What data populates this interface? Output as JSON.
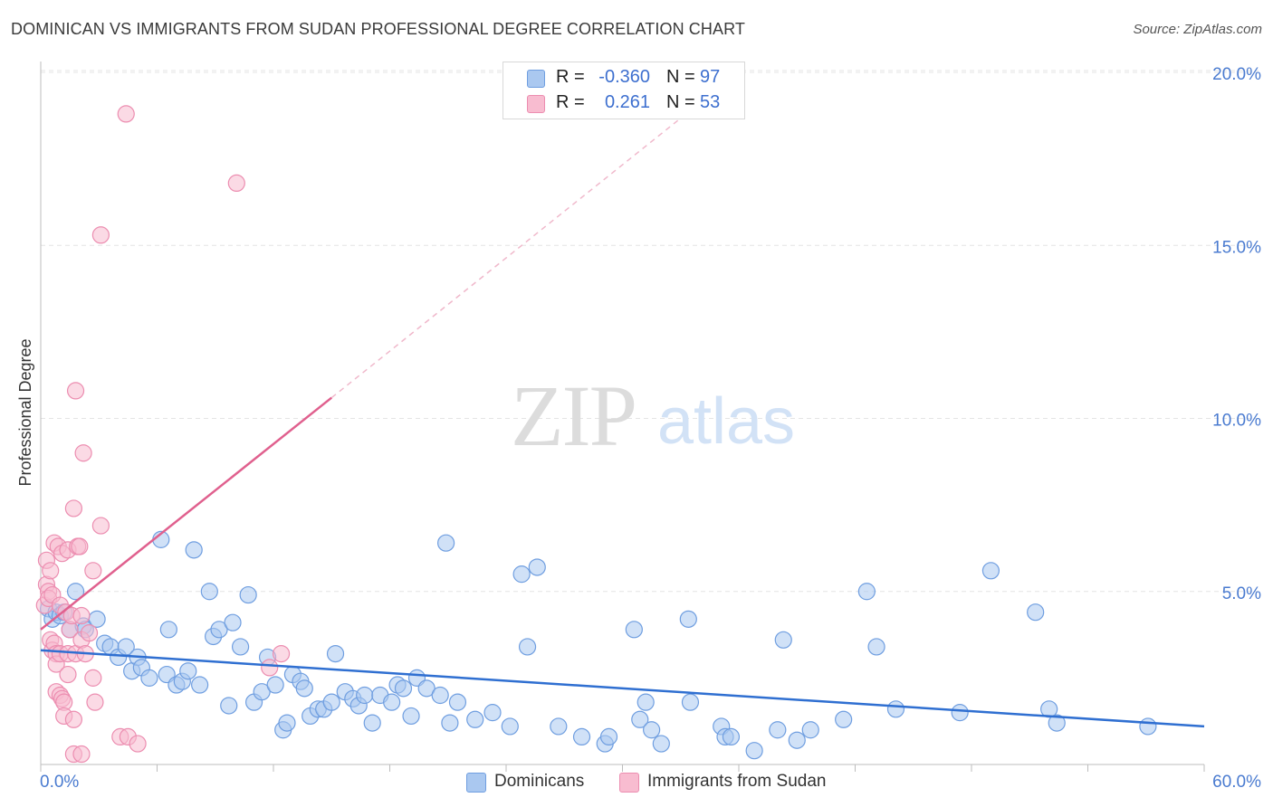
{
  "title": "DOMINICAN VS IMMIGRANTS FROM SUDAN PROFESSIONAL DEGREE CORRELATION CHART",
  "source": "Source: ZipAtlas.com",
  "watermark": {
    "zip": "ZIP",
    "atlas": "atlas"
  },
  "legend": {
    "rows": [
      {
        "r_label": "R =",
        "r_value": "-0.360",
        "n_label": "N =",
        "n_value": "97",
        "color": "#aac8f0",
        "border": "#6f9ee0"
      },
      {
        "r_label": "R =",
        "r_value": "0.261",
        "n_label": "N =",
        "n_value": "53",
        "color": "#f8bcd0",
        "border": "#ec8db0"
      }
    ]
  },
  "bottom_legend": {
    "items": [
      {
        "label": "Dominicans",
        "color": "#aac8f0",
        "border": "#6f9ee0"
      },
      {
        "label": "Immigrants from Sudan",
        "color": "#f8bcd0",
        "border": "#ec8db0"
      }
    ]
  },
  "chart_data": {
    "type": "scatter",
    "title": "DOMINICAN VS IMMIGRANTS FROM SUDAN PROFESSIONAL DEGREE CORRELATION CHART",
    "xlabel": "",
    "ylabel": "Professional Degree",
    "xlim": [
      0,
      60
    ],
    "ylim": [
      0,
      20
    ],
    "x_tick_labels": [
      "0.0%",
      "60.0%"
    ],
    "y_tick_labels": [
      "5.0%",
      "10.0%",
      "15.0%",
      "20.0%"
    ],
    "y_tick_values": [
      5,
      10,
      15,
      20
    ],
    "colors": {
      "blue_fill": "#aac8f0",
      "blue_stroke": "#6f9ee0",
      "blue_line": "#2f6fd1",
      "pink_fill": "#f8bcd0",
      "pink_stroke": "#ec8db0",
      "pink_line": "#e0608e",
      "grid": "#e4e4e4"
    },
    "series": [
      {
        "name": "Dominicans",
        "trend": {
          "x0": 0,
          "y0": 3.3,
          "x1": 60,
          "y1": 1.1
        },
        "points": [
          [
            0.4,
            4.5
          ],
          [
            0.6,
            4.2
          ],
          [
            0.8,
            4.4
          ],
          [
            1.0,
            4.3
          ],
          [
            1.2,
            4.4
          ],
          [
            1.5,
            3.9
          ],
          [
            1.8,
            5.0
          ],
          [
            2.2,
            4.0
          ],
          [
            2.3,
            3.9
          ],
          [
            2.9,
            4.2
          ],
          [
            3.3,
            3.5
          ],
          [
            3.6,
            3.4
          ],
          [
            4.0,
            3.1
          ],
          [
            4.4,
            3.4
          ],
          [
            4.7,
            2.7
          ],
          [
            5.0,
            3.1
          ],
          [
            5.2,
            2.8
          ],
          [
            5.6,
            2.5
          ],
          [
            6.2,
            6.5
          ],
          [
            6.5,
            2.6
          ],
          [
            6.6,
            3.9
          ],
          [
            7.0,
            2.3
          ],
          [
            7.3,
            2.4
          ],
          [
            7.6,
            2.7
          ],
          [
            7.9,
            6.2
          ],
          [
            8.2,
            2.3
          ],
          [
            8.7,
            5.0
          ],
          [
            8.9,
            3.7
          ],
          [
            9.2,
            3.9
          ],
          [
            9.7,
            1.7
          ],
          [
            9.9,
            4.1
          ],
          [
            10.3,
            3.4
          ],
          [
            10.7,
            4.9
          ],
          [
            11.0,
            1.8
          ],
          [
            11.4,
            2.1
          ],
          [
            11.7,
            3.1
          ],
          [
            12.1,
            2.3
          ],
          [
            12.5,
            1.0
          ],
          [
            12.7,
            1.2
          ],
          [
            13.0,
            2.6
          ],
          [
            13.4,
            2.4
          ],
          [
            13.6,
            2.2
          ],
          [
            13.9,
            1.4
          ],
          [
            14.3,
            1.6
          ],
          [
            14.6,
            1.6
          ],
          [
            15.0,
            1.8
          ],
          [
            15.2,
            3.2
          ],
          [
            15.7,
            2.1
          ],
          [
            16.1,
            1.9
          ],
          [
            16.4,
            1.7
          ],
          [
            16.7,
            2.0
          ],
          [
            17.1,
            1.2
          ],
          [
            17.5,
            2.0
          ],
          [
            18.1,
            1.8
          ],
          [
            18.4,
            2.3
          ],
          [
            18.7,
            2.2
          ],
          [
            19.1,
            1.4
          ],
          [
            19.4,
            2.5
          ],
          [
            19.9,
            2.2
          ],
          [
            20.6,
            2.0
          ],
          [
            20.9,
            6.4
          ],
          [
            21.1,
            1.2
          ],
          [
            21.5,
            1.8
          ],
          [
            22.4,
            1.3
          ],
          [
            23.3,
            1.5
          ],
          [
            24.2,
            1.1
          ],
          [
            24.8,
            5.5
          ],
          [
            25.1,
            3.4
          ],
          [
            25.6,
            5.7
          ],
          [
            26.7,
            1.1
          ],
          [
            27.9,
            0.8
          ],
          [
            29.1,
            0.6
          ],
          [
            29.3,
            0.8
          ],
          [
            30.6,
            3.9
          ],
          [
            30.9,
            1.3
          ],
          [
            31.2,
            1.8
          ],
          [
            31.5,
            1.0
          ],
          [
            32.0,
            0.6
          ],
          [
            33.4,
            4.2
          ],
          [
            33.5,
            1.8
          ],
          [
            35.1,
            1.1
          ],
          [
            35.3,
            0.8
          ],
          [
            35.6,
            0.8
          ],
          [
            36.8,
            0.4
          ],
          [
            38.0,
            1.0
          ],
          [
            38.3,
            3.6
          ],
          [
            39.0,
            0.7
          ],
          [
            39.7,
            1.0
          ],
          [
            41.4,
            1.3
          ],
          [
            42.6,
            5.0
          ],
          [
            43.1,
            3.4
          ],
          [
            44.1,
            1.6
          ],
          [
            47.4,
            1.5
          ],
          [
            49.0,
            5.6
          ],
          [
            51.3,
            4.4
          ],
          [
            52.0,
            1.6
          ],
          [
            52.4,
            1.2
          ],
          [
            57.1,
            1.1
          ]
        ]
      },
      {
        "name": "Immigrants from Sudan",
        "trend": {
          "x0": 0,
          "y0": 3.9,
          "x1": 15.0,
          "y1": 10.6,
          "dashed_to": {
            "x": 33.5,
            "y": 18.9
          }
        },
        "points": [
          [
            0.2,
            4.6
          ],
          [
            0.3,
            5.2
          ],
          [
            0.3,
            5.9
          ],
          [
            0.4,
            5.0
          ],
          [
            0.4,
            4.8
          ],
          [
            0.5,
            5.6
          ],
          [
            0.5,
            3.6
          ],
          [
            0.6,
            4.9
          ],
          [
            0.6,
            3.3
          ],
          [
            0.7,
            6.4
          ],
          [
            0.7,
            3.5
          ],
          [
            0.8,
            3.2
          ],
          [
            0.8,
            2.9
          ],
          [
            0.8,
            2.1
          ],
          [
            0.9,
            6.3
          ],
          [
            1.0,
            4.6
          ],
          [
            1.0,
            3.2
          ],
          [
            1.0,
            2.0
          ],
          [
            1.1,
            6.1
          ],
          [
            1.1,
            1.9
          ],
          [
            1.2,
            1.8
          ],
          [
            1.2,
            1.4
          ],
          [
            1.3,
            4.4
          ],
          [
            1.4,
            6.2
          ],
          [
            1.4,
            3.2
          ],
          [
            1.4,
            2.6
          ],
          [
            1.5,
            3.9
          ],
          [
            1.6,
            4.3
          ],
          [
            1.7,
            7.4
          ],
          [
            1.7,
            1.3
          ],
          [
            1.7,
            0.3
          ],
          [
            1.8,
            10.8
          ],
          [
            1.8,
            3.2
          ],
          [
            1.9,
            6.3
          ],
          [
            2.0,
            6.3
          ],
          [
            2.1,
            0.3
          ],
          [
            2.1,
            4.3
          ],
          [
            2.1,
            3.6
          ],
          [
            2.2,
            9.0
          ],
          [
            2.3,
            3.2
          ],
          [
            2.5,
            3.8
          ],
          [
            2.7,
            5.6
          ],
          [
            2.7,
            2.5
          ],
          [
            2.8,
            1.8
          ],
          [
            3.1,
            6.9
          ],
          [
            3.1,
            15.3
          ],
          [
            4.1,
            0.8
          ],
          [
            4.4,
            18.8
          ],
          [
            4.5,
            0.8
          ],
          [
            5.0,
            0.6
          ],
          [
            10.1,
            16.8
          ],
          [
            11.8,
            2.8
          ],
          [
            12.4,
            3.2
          ]
        ]
      }
    ]
  }
}
